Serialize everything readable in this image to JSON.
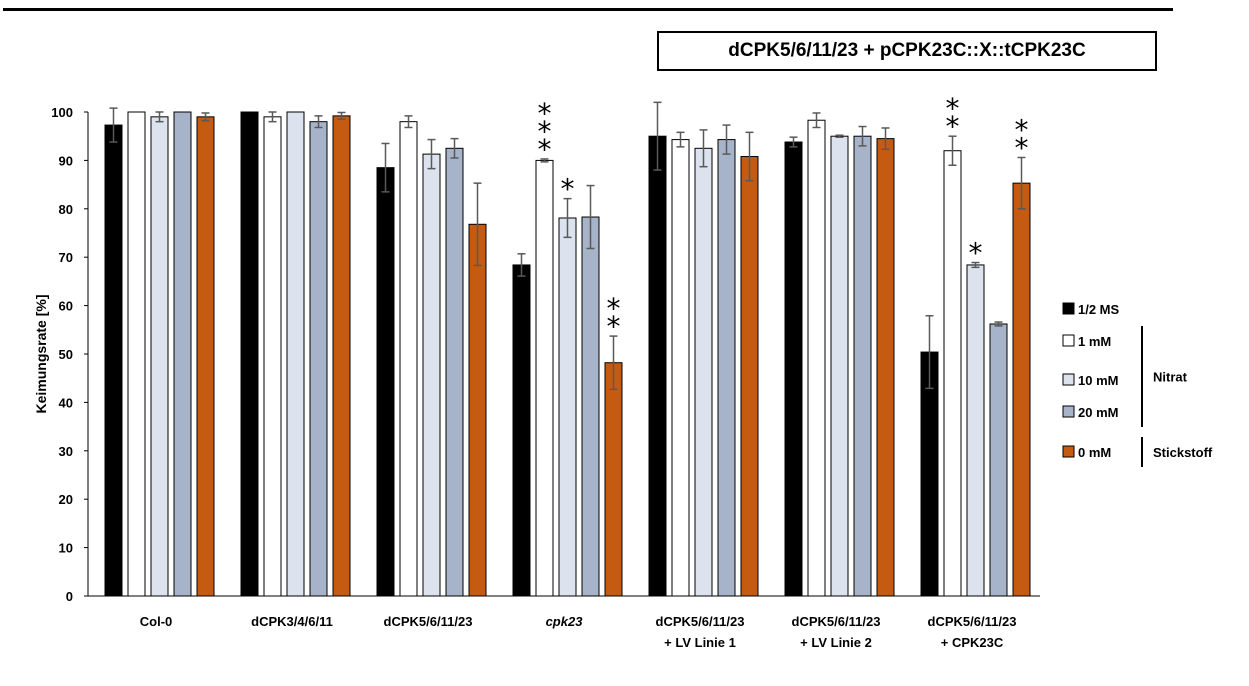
{
  "chart_data": {
    "type": "bar",
    "title": "dCPK5/6/11/23 + pCPK23C::X::tCPK23C",
    "ylabel": "Keimungsrate [%]",
    "xlabel": "",
    "ylim": [
      0,
      100
    ],
    "yticks": [
      0,
      10,
      20,
      30,
      40,
      50,
      60,
      70,
      80,
      90,
      100
    ],
    "grid": false,
    "legend_position": "right",
    "categories": [
      [
        "Col-0"
      ],
      [
        "dCPK3/4/6/11"
      ],
      [
        "dCPK5/6/11/23"
      ],
      [
        "cpk23"
      ],
      [
        "dCPK5/6/11/23",
        "+ LV Linie 1"
      ],
      [
        "dCPK5/6/11/23",
        "+ LV Linie 2"
      ],
      [
        "dCPK5/6/11/23",
        "+ CPK23C"
      ]
    ],
    "italic_categories": [
      3
    ],
    "series": [
      {
        "name": "1/2 MS",
        "color": "#000000",
        "values": [
          97.3,
          100,
          88.5,
          68.4,
          95.0,
          93.8,
          50.4
        ],
        "errors": [
          3.5,
          0,
          5.0,
          2.3,
          7.0,
          1.0,
          7.5
        ]
      },
      {
        "name": "1 mM",
        "color": "#ffffff",
        "values": [
          100,
          99.0,
          98.0,
          90.0,
          94.3,
          98.3,
          92.0
        ],
        "errors": [
          0,
          1.0,
          1.2,
          0.3,
          1.5,
          1.5,
          3.0
        ]
      },
      {
        "name": "10 mM",
        "color": "#dce3ee",
        "values": [
          99.0,
          100,
          91.3,
          78.1,
          92.5,
          95.0,
          68.4
        ],
        "errors": [
          1.0,
          0,
          3.0,
          4.0,
          3.8,
          0.2,
          0.5
        ]
      },
      {
        "name": "20 mM",
        "color": "#a7b3c8",
        "values": [
          100,
          98.0,
          92.5,
          78.3,
          94.3,
          95.0,
          56.2
        ],
        "errors": [
          0,
          1.2,
          2.0,
          6.5,
          3.0,
          2.0,
          0.4
        ]
      },
      {
        "name": "0 mM",
        "color": "#c55a11",
        "values": [
          99.0,
          99.2,
          76.8,
          48.2,
          90.8,
          94.5,
          85.3
        ],
        "errors": [
          0.8,
          0.7,
          8.5,
          5.5,
          5.0,
          2.2,
          5.3
        ]
      }
    ],
    "significance": [
      {
        "category": 3,
        "series": 1,
        "label": "***"
      },
      {
        "category": 3,
        "series": 2,
        "label": "*"
      },
      {
        "category": 3,
        "series": 4,
        "label": "**"
      },
      {
        "category": 6,
        "series": 1,
        "label": "**"
      },
      {
        "category": 6,
        "series": 2,
        "label": "*"
      },
      {
        "category": 6,
        "series": 4,
        "label": "**"
      }
    ],
    "legend_groups": [
      {
        "label": "Nitrat",
        "series": [
          1,
          2,
          3
        ]
      },
      {
        "label": "Stickstoff",
        "series": [
          4
        ]
      }
    ]
  }
}
